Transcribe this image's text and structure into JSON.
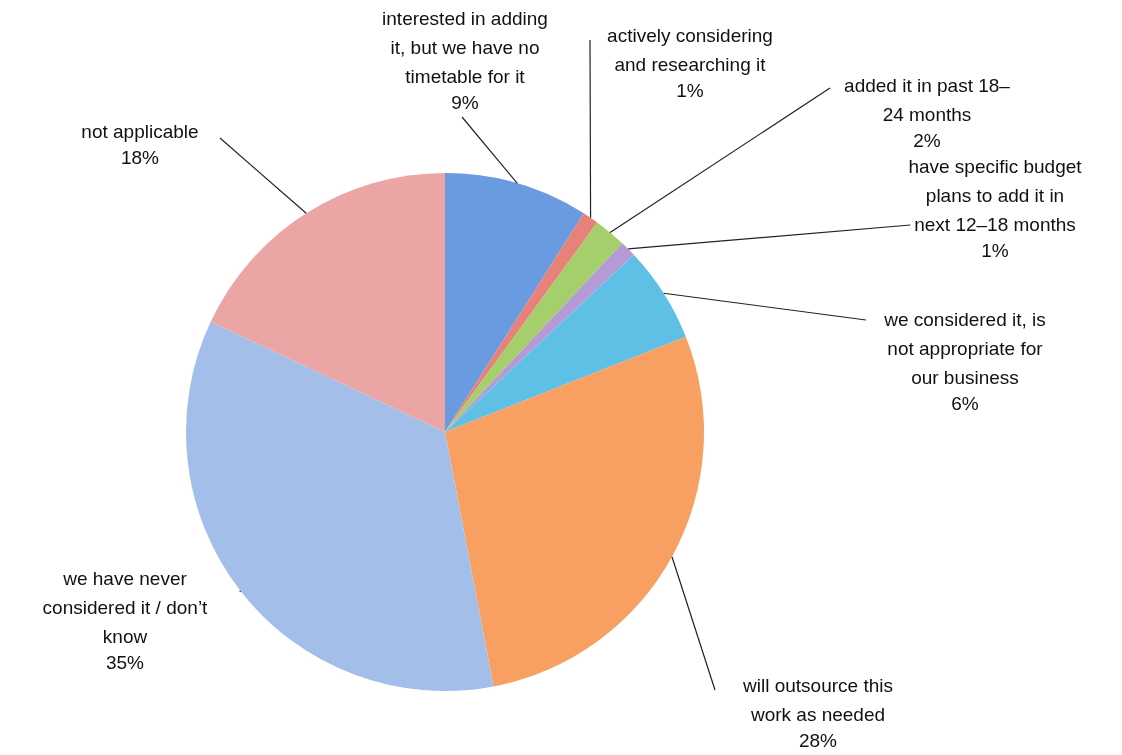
{
  "chart_data": {
    "type": "pie",
    "categories": [
      "interested in adding it, but we have no timetable for it",
      "actively considering and researching it",
      "added it in past 18–24 months",
      "have specific budget plans to add it in next 12–18 months",
      "we considered it, is not appropriate for our business",
      "will outsource this work as needed",
      "we have never considered it / don’t know",
      "not applicable"
    ],
    "values": [
      9,
      1,
      2,
      1,
      6,
      28,
      35,
      18
    ],
    "value_labels": [
      "9%",
      "1%",
      "2%",
      "1%",
      "6%",
      "28%",
      "35%",
      "18%"
    ],
    "colors": [
      "#6a9ae0",
      "#e6827a",
      "#a5cf6a",
      "#b59ad6",
      "#5fc0e6",
      "#f7a062",
      "#a3bfe9",
      "#eba5a5"
    ],
    "legend": false
  }
}
